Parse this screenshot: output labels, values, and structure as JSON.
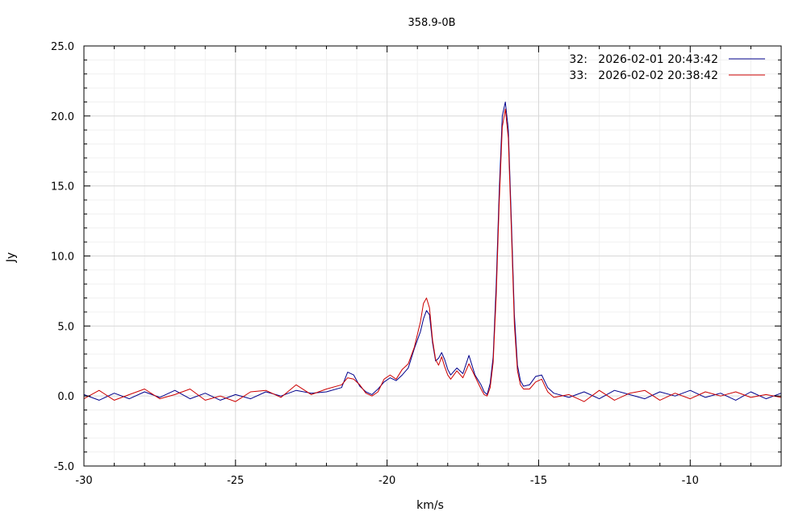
{
  "chart_data": {
    "type": "line",
    "title": "358.9-0B",
    "xlabel": "km/s",
    "ylabel": "Jy",
    "xlim": [
      -30,
      -7
    ],
    "ylim": [
      -5,
      25
    ],
    "x_ticks": [
      -30,
      -25,
      -20,
      -15,
      -10
    ],
    "x_tick_labels": [
      "-30",
      "-25",
      "-20",
      "-15",
      "-10"
    ],
    "y_ticks": [
      -5,
      0,
      5,
      10,
      15,
      20,
      25
    ],
    "y_tick_labels": [
      "-5.0",
      "0.0",
      "5.0",
      "10.0",
      "15.0",
      "20.0",
      "25.0"
    ],
    "grid": true,
    "legend_position": "top-right",
    "x": [
      -30.0,
      -29.5,
      -29.0,
      -28.5,
      -28.0,
      -27.5,
      -27.0,
      -26.5,
      -26.0,
      -25.5,
      -25.0,
      -24.5,
      -24.0,
      -23.5,
      -23.0,
      -22.5,
      -22.0,
      -21.5,
      -21.3,
      -21.1,
      -20.9,
      -20.7,
      -20.5,
      -20.3,
      -20.1,
      -19.9,
      -19.7,
      -19.5,
      -19.3,
      -19.1,
      -18.9,
      -18.8,
      -18.7,
      -18.6,
      -18.5,
      -18.4,
      -18.3,
      -18.2,
      -18.1,
      -18.0,
      -17.9,
      -17.7,
      -17.5,
      -17.3,
      -17.1,
      -16.9,
      -16.8,
      -16.7,
      -16.6,
      -16.5,
      -16.4,
      -16.3,
      -16.2,
      -16.1,
      -16.0,
      -15.9,
      -15.8,
      -15.7,
      -15.6,
      -15.5,
      -15.3,
      -15.1,
      -14.9,
      -14.7,
      -14.5,
      -14.0,
      -13.5,
      -13.0,
      -12.5,
      -12.0,
      -11.5,
      -11.0,
      -10.5,
      -10.0,
      -9.5,
      -9.0,
      -8.5,
      -8.0,
      -7.5,
      -7.0
    ],
    "series": [
      {
        "name": "32:   2026-02-01 20:43:42",
        "color": "#00008b",
        "values": [
          0.1,
          -0.3,
          0.2,
          -0.2,
          0.3,
          -0.1,
          0.4,
          -0.2,
          0.2,
          -0.3,
          0.1,
          -0.2,
          0.3,
          0.0,
          0.4,
          0.2,
          0.3,
          0.6,
          1.7,
          1.5,
          0.7,
          0.3,
          0.1,
          0.5,
          1.0,
          1.3,
          1.1,
          1.5,
          2.0,
          3.4,
          4.6,
          5.5,
          6.1,
          5.8,
          3.8,
          2.5,
          2.7,
          3.1,
          2.6,
          1.9,
          1.5,
          2.0,
          1.6,
          2.9,
          1.5,
          0.8,
          0.3,
          0.1,
          0.9,
          2.8,
          8.0,
          14.6,
          20.0,
          21.0,
          19.0,
          12.5,
          5.8,
          2.2,
          1.1,
          0.7,
          0.8,
          1.4,
          1.5,
          0.6,
          0.2,
          -0.1,
          0.3,
          -0.2,
          0.4,
          0.1,
          -0.2,
          0.3,
          0.0,
          0.4,
          -0.1,
          0.2,
          -0.3,
          0.3,
          -0.2,
          0.2
        ]
      },
      {
        "name": "33:   2026-02-02 20:38:42",
        "color": "#cc0000",
        "values": [
          -0.2,
          0.4,
          -0.3,
          0.1,
          0.5,
          -0.2,
          0.1,
          0.5,
          -0.3,
          0.0,
          -0.4,
          0.3,
          0.4,
          -0.1,
          0.8,
          0.1,
          0.5,
          0.8,
          1.3,
          1.2,
          0.8,
          0.2,
          0.0,
          0.3,
          1.2,
          1.5,
          1.2,
          1.9,
          2.3,
          3.5,
          5.3,
          6.6,
          7.0,
          6.3,
          4.0,
          2.6,
          2.2,
          2.8,
          2.1,
          1.5,
          1.2,
          1.8,
          1.3,
          2.3,
          1.4,
          0.5,
          0.1,
          0.0,
          0.6,
          2.4,
          7.2,
          13.8,
          19.2,
          20.5,
          18.4,
          11.8,
          5.1,
          1.8,
          0.8,
          0.5,
          0.5,
          1.0,
          1.2,
          0.3,
          -0.1,
          0.1,
          -0.4,
          0.4,
          -0.3,
          0.2,
          0.4,
          -0.3,
          0.2,
          -0.2,
          0.3,
          0.0,
          0.3,
          -0.1,
          0.1,
          -0.1
        ]
      }
    ]
  }
}
